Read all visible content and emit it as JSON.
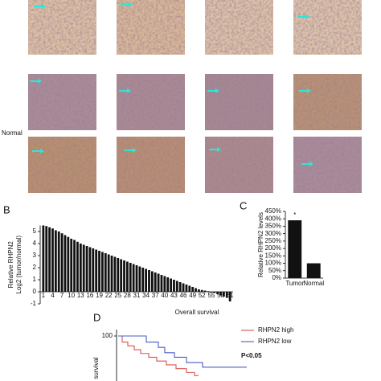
{
  "figure": {
    "normal_label": "Normal",
    "panel_labels": [
      "B",
      "C",
      "D"
    ]
  },
  "chart_data": [
    {
      "type": "bar",
      "ylabel": [
        "Relative RHPN2",
        "Log2 (tumor/normal)"
      ],
      "color": "#111111",
      "x": [
        1,
        2,
        3,
        4,
        5,
        6,
        7,
        8,
        9,
        10,
        11,
        12,
        13,
        14,
        15,
        16,
        17,
        18,
        19,
        20,
        21,
        22,
        23,
        24,
        25,
        26,
        27,
        28,
        29,
        30,
        31,
        32,
        33,
        34,
        35,
        36,
        37,
        38,
        39,
        40,
        41,
        42,
        43,
        44,
        45,
        46,
        47,
        48,
        49,
        50,
        51,
        52,
        53,
        54,
        55,
        56,
        57,
        58,
        59,
        60,
        61
      ],
      "values": [
        5.5,
        5.45,
        5.35,
        5.25,
        5.1,
        5.0,
        4.85,
        4.7,
        4.55,
        4.4,
        4.3,
        4.15,
        4.0,
        3.9,
        3.8,
        3.7,
        3.6,
        3.5,
        3.4,
        3.3,
        3.2,
        3.1,
        3.0,
        2.9,
        2.8,
        2.7,
        2.6,
        2.5,
        2.4,
        2.3,
        2.2,
        2.1,
        2.0,
        1.9,
        1.8,
        1.7,
        1.6,
        1.5,
        1.4,
        1.3,
        1.2,
        1.1,
        1.0,
        0.9,
        0.8,
        0.7,
        0.6,
        0.5,
        0.4,
        0.3,
        0.2,
        0.15,
        0.1,
        0.05,
        -0.05,
        -0.1,
        -0.2,
        -0.3,
        -0.4,
        -0.5,
        -0.8
      ],
      "xlim": [
        0,
        62
      ],
      "xticks": [
        1,
        4,
        7,
        10,
        13,
        16,
        19,
        22,
        25,
        28,
        31,
        34,
        37,
        40,
        43,
        46,
        49,
        52,
        55,
        58,
        61
      ],
      "ylim": [
        -1,
        5.5
      ],
      "yticks": [
        -1,
        0,
        1,
        2,
        3,
        4,
        5
      ]
    },
    {
      "type": "bar",
      "ylabel": "Relative RHPN2 levels",
      "color": "#111111",
      "categories": [
        "Tumor",
        "Normal"
      ],
      "values": [
        390,
        100
      ],
      "annotation": "*",
      "ylim": [
        0,
        450
      ],
      "yticks": [
        {
          "value": 0,
          "label": "0%"
        },
        {
          "value": 50,
          "label": "50%"
        },
        {
          "value": 100,
          "label": "100%"
        },
        {
          "value": 150,
          "label": "150%"
        },
        {
          "value": 200,
          "label": "200%"
        },
        {
          "value": 250,
          "label": "250%"
        },
        {
          "value": 300,
          "label": "300%"
        },
        {
          "value": 350,
          "label": "350%"
        },
        {
          "value": 400,
          "label": "400%"
        },
        {
          "value": 450,
          "label": "450%"
        }
      ]
    },
    {
      "type": "line",
      "title": "Overall survival",
      "ylabel": "survival",
      "annotation": "P<0.05",
      "xlim": [
        0,
        160
      ],
      "ylim": [
        45,
        100
      ],
      "yticks": [
        100
      ],
      "series": [
        {
          "name": "RHPN2 high",
          "color": "#d9534f",
          "x": [
            0,
            5,
            5,
            12,
            12,
            20,
            20,
            28,
            28,
            38,
            38,
            48,
            48,
            60,
            60,
            72,
            72,
            85,
            85,
            95,
            95,
            100
          ],
          "values": [
            100,
            100,
            92,
            92,
            87,
            87,
            82,
            82,
            77,
            77,
            72,
            72,
            67,
            67,
            62,
            62,
            57,
            57,
            52,
            52,
            48,
            48
          ]
        },
        {
          "name": "RHPN2 low",
          "color": "#4a5bc4",
          "x": [
            0,
            35,
            35,
            50,
            50,
            58,
            58,
            70,
            70,
            85,
            85,
            105,
            105,
            160
          ],
          "values": [
            100,
            100,
            92,
            92,
            85,
            85,
            78,
            78,
            72,
            72,
            65,
            65,
            59,
            59
          ]
        }
      ]
    }
  ]
}
